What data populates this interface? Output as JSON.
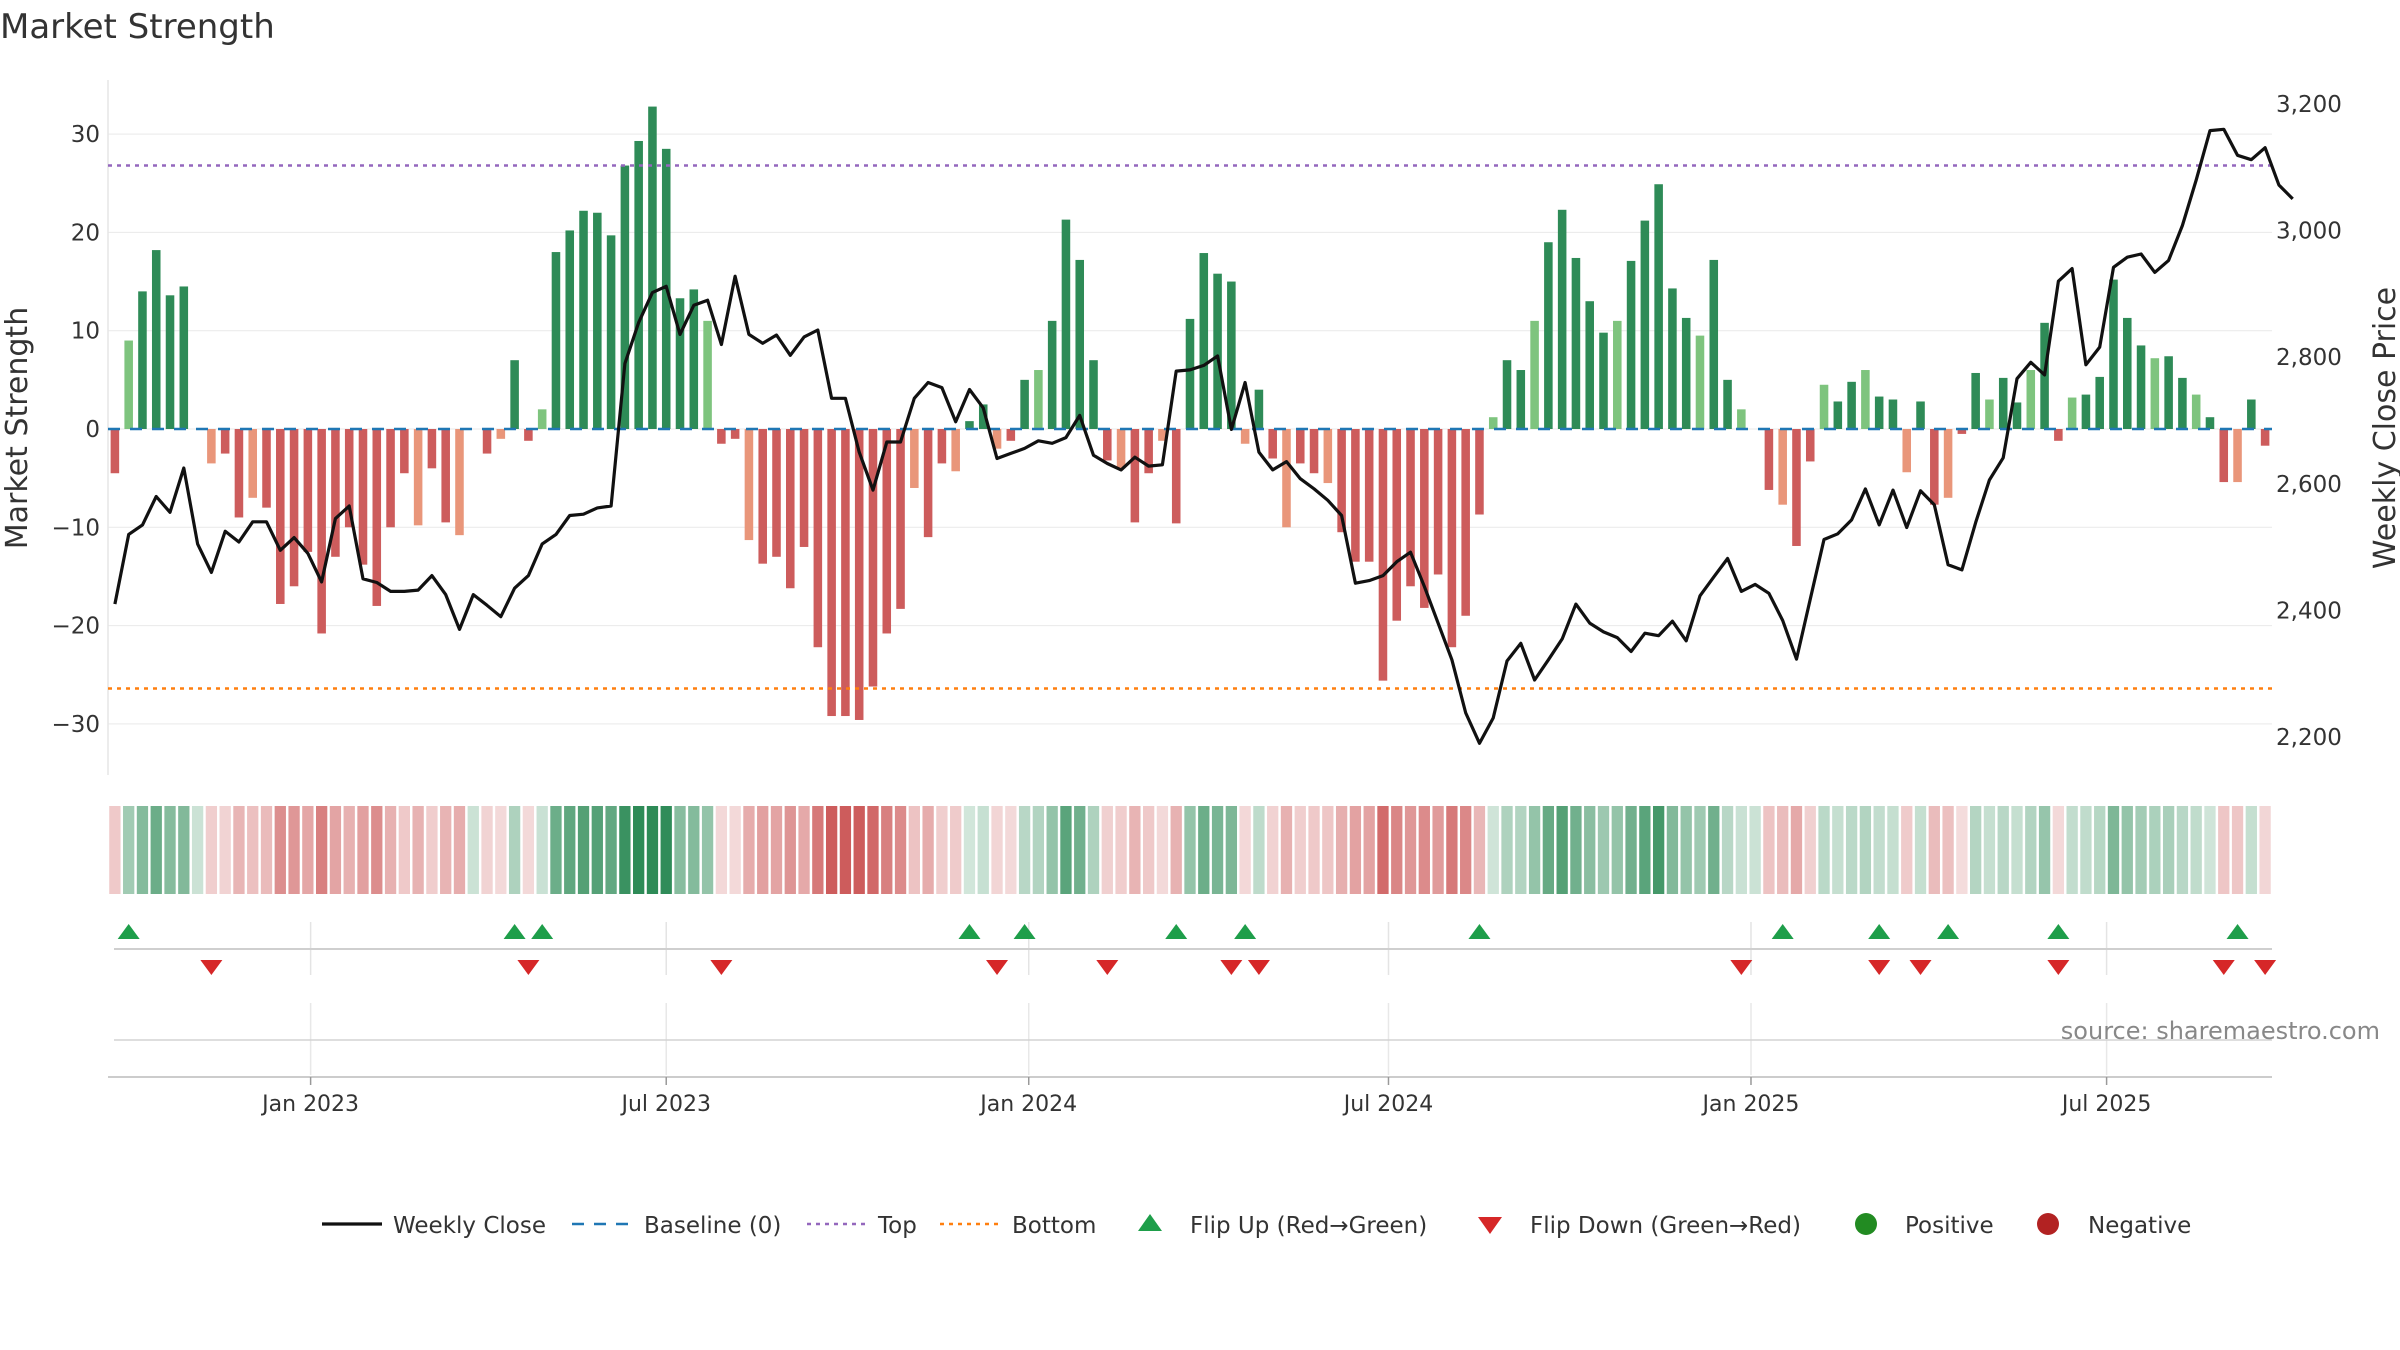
{
  "chart_data": {
    "type": "bar",
    "title": "Market Strength",
    "ylabel_left": "Market Strength",
    "ylabel_right": "Weekly Close Price",
    "ylim_left": [
      -35,
      36
    ],
    "ylim_right": [
      2130,
      3230
    ],
    "left_ticks": [
      30,
      20,
      10,
      0,
      -10,
      -20,
      -30
    ],
    "left_tick_labels": [
      "30",
      "20",
      "10",
      "0",
      "−10",
      "−20",
      "−30"
    ],
    "right_ticks": [
      3200,
      3000,
      2800,
      2600,
      2400,
      2200
    ],
    "right_tick_labels": [
      "3,200",
      "3,000",
      "2,800",
      "2,600",
      "2,400",
      "2,200"
    ],
    "x_tick_labels": [
      {
        "week": 14.2,
        "label": "Jan 2023"
      },
      {
        "week": 40.0,
        "label": "Jul 2023"
      },
      {
        "week": 66.3,
        "label": "Jan 2024"
      },
      {
        "week": 92.4,
        "label": "Jul 2024"
      },
      {
        "week": 118.7,
        "label": "Jan 2025"
      },
      {
        "week": 144.5,
        "label": "Jul 2025"
      }
    ],
    "top_threshold": 26.8,
    "bottom_threshold": -26.4,
    "baseline": 0,
    "grid": true,
    "legend_position": "bottom",
    "source": "source: sharemaestro.com",
    "strength": [
      -4.5,
      9,
      14,
      18.2,
      13.6,
      14.5,
      0,
      -3.5,
      -2.5,
      -9,
      -7,
      -8,
      -17.8,
      -16,
      -12.5,
      -20.8,
      -13,
      -10,
      -13.8,
      -18,
      -10,
      -4.5,
      -9.8,
      -4,
      -9.5,
      -10.8,
      0,
      -2.5,
      -1,
      7,
      -1.2,
      2,
      18,
      20.2,
      22.2,
      22,
      19.7,
      26.8,
      29.3,
      32.8,
      28.5,
      13.3,
      14.2,
      11,
      -1.5,
      -1,
      -11.3,
      -13.7,
      -13,
      -16.2,
      -12,
      -22.2,
      -29.2,
      -29.2,
      -29.6,
      -26.2,
      -20.8,
      -18.3,
      -6,
      -11,
      -3.5,
      -4.3,
      0.8,
      2.5,
      -2,
      -1.2,
      5,
      6,
      11,
      21.3,
      17.2,
      7,
      -3.2,
      -4,
      -9.5,
      -4.5,
      -1.2,
      -9.6,
      11.2,
      17.9,
      15.8,
      15,
      -1.5,
      4,
      -3,
      -10,
      -3.5,
      -4.5,
      -5.5,
      -10.5,
      -13.5,
      -13.5,
      -25.6,
      -19.5,
      -16,
      -18.2,
      -14.8,
      -22.2,
      -19,
      -8.7,
      1.2,
      7,
      6,
      11,
      19,
      22.3,
      17.4,
      13,
      9.8,
      11,
      17.1,
      21.2,
      24.9,
      14.3,
      11.3,
      9.5,
      17.2,
      5,
      2,
      0,
      -6.2,
      -7.7,
      -11.9,
      -3.3,
      4.5,
      2.8,
      4.8,
      6,
      3.3,
      3,
      -4.4,
      2.8,
      -7.7,
      -7,
      -0.5,
      5.7,
      3,
      5.2,
      2.7,
      6,
      10.8,
      -1.2,
      3.2,
      3.5,
      5.3,
      15.2,
      11.3,
      8.5,
      7.2,
      7.4,
      5.2,
      3.5,
      1.2,
      -5.4,
      -5.4,
      3,
      -1.7
    ],
    "close": [
      2410,
      2520,
      2535,
      2580,
      2555,
      2625,
      2505,
      2460,
      2525,
      2508,
      2540,
      2540,
      2495,
      2515,
      2490,
      2445,
      2545,
      2565,
      2450,
      2444,
      2430,
      2430,
      2432,
      2455,
      2425,
      2370,
      2425,
      2408,
      2390,
      2435,
      2455,
      2505,
      2520,
      2550,
      2552,
      2562,
      2565,
      2790,
      2855,
      2902,
      2912,
      2836,
      2882,
      2890,
      2820,
      2928,
      2836,
      2822,
      2835,
      2803,
      2832,
      2843,
      2735,
      2735,
      2650,
      2590,
      2666,
      2666,
      2735,
      2760,
      2752,
      2698,
      2749,
      2720,
      2640,
      2648,
      2656,
      2668,
      2664,
      2673,
      2708,
      2645,
      2632,
      2622,
      2642,
      2628,
      2630,
      2778,
      2780,
      2787,
      2802,
      2686,
      2760,
      2650,
      2622,
      2635,
      2608,
      2592,
      2574,
      2550,
      2443,
      2447,
      2455,
      2477,
      2492,
      2438,
      2380,
      2322,
      2238,
      2190,
      2230,
      2320,
      2348,
      2290,
      2322,
      2355,
      2410,
      2380,
      2366,
      2357,
      2335,
      2364,
      2360,
      2383,
      2352,
      2423,
      2453,
      2482,
      2430,
      2441,
      2427,
      2384,
      2323,
      2418,
      2512,
      2521,
      2543,
      2592,
      2535,
      2590,
      2531,
      2589,
      2567,
      2472,
      2464,
      2539,
      2606,
      2641,
      2766,
      2792,
      2772,
      2920,
      2940,
      2788,
      2816,
      2942,
      2958,
      2963,
      2934,
      2953,
      3008,
      3080,
      3158,
      3160,
      3119,
      3112,
      3131,
      3072,
      3050
    ],
    "flips_up_weeks": [
      1,
      29,
      31,
      62,
      66,
      77,
      82,
      99,
      121,
      128,
      133,
      141,
      154
    ],
    "flips_down_weeks": [
      7,
      30,
      44,
      64,
      72,
      81,
      83,
      118,
      128,
      131,
      141,
      153,
      156
    ],
    "colors": {
      "strong_green": "#2e8b57",
      "light_green": "#7ec47e",
      "strong_red": "#cd5c5c",
      "light_red": "#e9967a",
      "baseline": "#1f77b4",
      "top": "#9467bd",
      "bottom": "#ff7f0e",
      "flip_up": "#1e9e4a",
      "flip_down": "#d62728",
      "positive": "#228b22",
      "negative": "#b22222",
      "close_line": "#111111"
    },
    "legend": [
      {
        "label": "Weekly Close",
        "kind": "line"
      },
      {
        "label": "Baseline (0)",
        "kind": "dash"
      },
      {
        "label": "Top",
        "kind": "dot"
      },
      {
        "label": "Bottom",
        "kind": "dot-orange"
      },
      {
        "label": "Flip Up (Red→Green)",
        "kind": "tri-up"
      },
      {
        "label": "Flip Down (Green→Red)",
        "kind": "tri-down"
      },
      {
        "label": "Positive",
        "kind": "circle-pos"
      },
      {
        "label": "Negative",
        "kind": "circle-neg"
      }
    ]
  }
}
